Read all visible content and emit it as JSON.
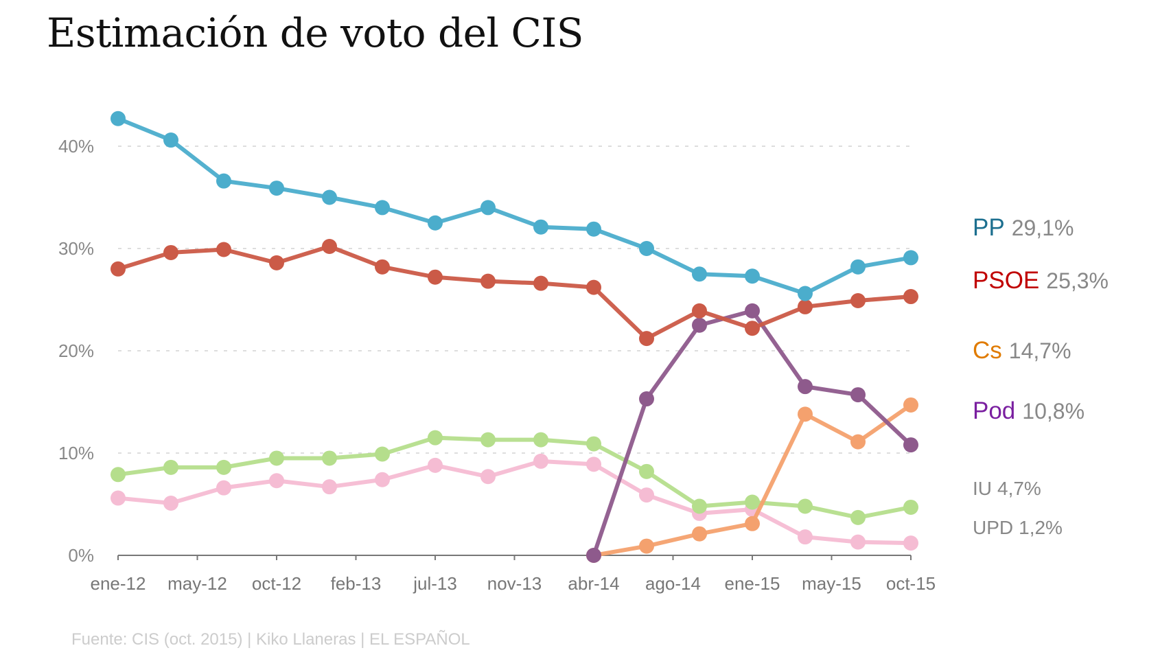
{
  "chart_data": {
    "type": "line",
    "title": "Estimación de voto del CIS",
    "x_tick_labels": [
      "ene-12",
      "may-12",
      "oct-12",
      "feb-13",
      "jul-13",
      "nov-13",
      "abr-14",
      "ago-14",
      "ene-15",
      "may-15",
      "oct-15"
    ],
    "ylim": [
      0,
      40
    ],
    "y_ticks": [
      0,
      10,
      20,
      30,
      40
    ],
    "y_tick_labels": [
      "0%",
      "10%",
      "20%",
      "30%",
      "40%"
    ],
    "grid": true,
    "legend_placement": "right (inline labels)",
    "point_count": 16,
    "series": [
      {
        "name": "PP",
        "label_value": "29,1%",
        "color": "#4badcc",
        "label_color": "#1c6f8f",
        "values": [
          42.7,
          40.6,
          36.6,
          35.9,
          35.0,
          34.0,
          32.5,
          34.0,
          32.1,
          31.9,
          30.0,
          27.5,
          27.3,
          25.6,
          28.2,
          29.1
        ]
      },
      {
        "name": "PSOE",
        "label_value": "25,3%",
        "color": "#cb5a47",
        "label_color": "#c00000",
        "values": [
          28.0,
          29.6,
          29.9,
          28.6,
          30.2,
          28.2,
          27.2,
          26.8,
          26.6,
          26.2,
          21.2,
          23.9,
          22.2,
          24.3,
          24.9,
          25.3
        ]
      },
      {
        "name": "Cs",
        "label_value": "14,7%",
        "color": "#f4a16e",
        "label_color": "#e07b00",
        "values": [
          null,
          null,
          null,
          null,
          null,
          null,
          null,
          null,
          null,
          0,
          0.9,
          2.1,
          3.1,
          13.8,
          11.1,
          14.7
        ]
      },
      {
        "name": "Pod",
        "label_value": "10,8%",
        "color": "#8e5a8c",
        "label_color": "#7a1fa0",
        "values": [
          null,
          null,
          null,
          null,
          null,
          null,
          null,
          null,
          null,
          0,
          15.3,
          22.5,
          23.9,
          16.5,
          15.7,
          10.8
        ]
      },
      {
        "name": "IU",
        "label_value": "4,7%",
        "color": "#b5de8c",
        "label_color": "#888888",
        "values": [
          7.9,
          8.6,
          8.6,
          9.5,
          9.5,
          9.9,
          11.5,
          11.3,
          11.3,
          10.9,
          8.2,
          4.8,
          5.2,
          4.8,
          3.7,
          4.7
        ]
      },
      {
        "name": "UPD",
        "label_value": "1,2%",
        "color": "#f5bcd3",
        "label_color": "#888888",
        "values": [
          5.6,
          5.1,
          6.6,
          7.3,
          6.7,
          7.4,
          8.8,
          7.7,
          9.2,
          8.9,
          5.9,
          4.1,
          4.5,
          1.8,
          1.3,
          1.2
        ]
      }
    ],
    "source": "Fuente: CIS (oct. 2015)  |  Kiko Llaneras  |  EL ESPAÑOL"
  }
}
